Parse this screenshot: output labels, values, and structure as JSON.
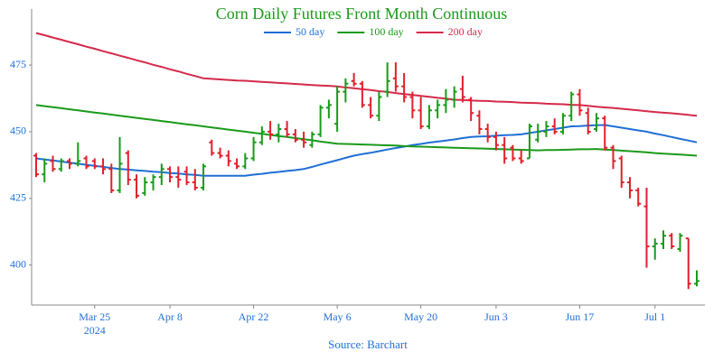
{
  "chart_data": {
    "type": "ohlc",
    "title": "Corn Daily Futures Front Month Continuous",
    "source": "Source: Barchart",
    "year_label": "2024",
    "categories": [
      "2024-03-14",
      "2024-03-15",
      "2024-03-18",
      "2024-03-19",
      "2024-03-20",
      "2024-03-21",
      "2024-03-22",
      "2024-03-25",
      "2024-03-26",
      "2024-03-27",
      "2024-03-28",
      "2024-04-01",
      "2024-04-02",
      "2024-04-03",
      "2024-04-04",
      "2024-04-05",
      "2024-04-08",
      "2024-04-09",
      "2024-04-10",
      "2024-04-11",
      "2024-04-12",
      "2024-04-15",
      "2024-04-16",
      "2024-04-17",
      "2024-04-18",
      "2024-04-19",
      "2024-04-22",
      "2024-04-23",
      "2024-04-24",
      "2024-04-25",
      "2024-04-26",
      "2024-04-29",
      "2024-04-30",
      "2024-05-01",
      "2024-05-02",
      "2024-05-03",
      "2024-05-06",
      "2024-05-07",
      "2024-05-08",
      "2024-05-09",
      "2024-05-10",
      "2024-05-13",
      "2024-05-14",
      "2024-05-15",
      "2024-05-16",
      "2024-05-17",
      "2024-05-20",
      "2024-05-21",
      "2024-05-22",
      "2024-05-23",
      "2024-05-24",
      "2024-05-28",
      "2024-05-29",
      "2024-05-30",
      "2024-05-31",
      "2024-06-03",
      "2024-06-04",
      "2024-06-05",
      "2024-06-06",
      "2024-06-07",
      "2024-06-10",
      "2024-06-11",
      "2024-06-12",
      "2024-06-13",
      "2024-06-14",
      "2024-06-17",
      "2024-06-18",
      "2024-06-20",
      "2024-06-21",
      "2024-06-24",
      "2024-06-25",
      "2024-06-26",
      "2024-06-27",
      "2024-06-28",
      "2024-07-01",
      "2024-07-02",
      "2024-07-03",
      "2024-07-05",
      "2024-07-08",
      "2024-07-09"
    ],
    "open": [
      441,
      434,
      439,
      436,
      439,
      438,
      440,
      439,
      437,
      436,
      428,
      442,
      432,
      427,
      431,
      433,
      436,
      433,
      435,
      431,
      429,
      446,
      442,
      441,
      438,
      437,
      440,
      446,
      450,
      449,
      451,
      449,
      447,
      445,
      449,
      459,
      453,
      465,
      469,
      468,
      460,
      456,
      465,
      470,
      467,
      463,
      458,
      452,
      458,
      460,
      462,
      466,
      462,
      456,
      451,
      448,
      445,
      444,
      440,
      440,
      447,
      450,
      452,
      450,
      456,
      464,
      457,
      451,
      455,
      444,
      440,
      431,
      428,
      422,
      407,
      408,
      411,
      406,
      410,
      393
    ],
    "high": [
      442,
      440,
      441,
      440,
      440,
      446,
      441,
      440,
      440,
      438,
      448,
      443,
      434,
      433,
      434,
      438,
      437,
      437,
      437,
      436,
      438,
      447,
      444,
      443,
      440,
      442,
      448,
      452,
      454,
      453,
      454,
      451,
      450,
      450,
      460,
      462,
      467,
      470,
      472,
      469,
      463,
      465,
      476,
      476,
      472,
      465,
      463,
      460,
      462,
      466,
      467,
      471,
      463,
      458,
      453,
      450,
      448,
      445,
      443,
      453,
      453,
      454,
      455,
      457,
      465,
      466,
      459,
      457,
      456,
      445,
      441,
      433,
      429,
      429,
      410,
      413,
      412,
      412,
      410,
      398
    ],
    "low": [
      433,
      431,
      435,
      435,
      436,
      437,
      436,
      436,
      434,
      427,
      427,
      430,
      425,
      426,
      428,
      430,
      431,
      429,
      430,
      428,
      428,
      441,
      440,
      437,
      436,
      436,
      439,
      445,
      447,
      446,
      448,
      446,
      444,
      444,
      448,
      455,
      450,
      461,
      467,
      459,
      455,
      454,
      463,
      465,
      461,
      455,
      451,
      451,
      455,
      457,
      459,
      461,
      454,
      449,
      446,
      443,
      438,
      439,
      438,
      440,
      446,
      448,
      449,
      449,
      454,
      456,
      449,
      450,
      443,
      436,
      429,
      425,
      422,
      399,
      402,
      406,
      406,
      405,
      391,
      392
    ],
    "close": [
      434,
      438,
      436,
      439,
      438,
      439,
      437,
      437,
      436,
      428,
      438,
      432,
      426,
      431,
      433,
      436,
      433,
      432,
      431,
      429,
      437,
      442,
      441,
      439,
      437,
      440,
      446,
      450,
      449,
      451,
      449,
      447,
      446,
      449,
      459,
      460,
      465,
      468,
      468,
      460,
      456,
      463,
      469,
      467,
      463,
      458,
      452,
      458,
      460,
      462,
      465,
      463,
      457,
      451,
      448,
      445,
      440,
      440,
      439,
      452,
      450,
      452,
      450,
      456,
      464,
      458,
      450,
      455,
      444,
      439,
      431,
      428,
      423,
      407,
      408,
      411,
      407,
      411,
      393,
      394
    ],
    "up_color": "#1a9a1a",
    "down_color": "#e0202a",
    "series": [
      {
        "name": "50 day",
        "color": "#1f6fd6",
        "values": [
          440,
          439.6,
          439.2,
          438.8,
          438.4,
          438,
          437.6,
          437.2,
          436.8,
          436.4,
          436,
          435.8,
          435.5,
          435.3,
          435,
          434.8,
          434.5,
          434.3,
          434,
          433.8,
          433.5,
          433.5,
          433.5,
          433.5,
          433.5,
          433.5,
          433.9,
          434.2,
          434.6,
          434.9,
          435.3,
          435.6,
          436,
          436.8,
          437.7,
          438.5,
          439.3,
          440.2,
          441,
          441.6,
          442.1,
          442.7,
          443.3,
          443.9,
          444.4,
          445,
          445.4,
          445.9,
          446.3,
          446.7,
          447.1,
          447.6,
          448,
          448.2,
          448.3,
          448.5,
          448.7,
          448.8,
          449,
          449.5,
          450,
          450.5,
          451,
          451.5,
          452,
          452.1,
          452.3,
          452.4,
          452.5,
          452,
          451.5,
          451,
          450.5,
          450,
          449.3,
          448.7,
          448,
          447.3,
          446.7,
          446
        ]
      },
      {
        "name": "100 day",
        "color": "#1a9a1a",
        "values": [
          460,
          459.6,
          459.2,
          458.8,
          458.4,
          458,
          457.6,
          457.2,
          456.8,
          456.4,
          456,
          455.6,
          455.2,
          454.8,
          454.4,
          454,
          453.6,
          453.2,
          452.8,
          452.4,
          452,
          451.6,
          451.2,
          450.8,
          450.4,
          450,
          449.6,
          449.2,
          448.8,
          448.4,
          448,
          447.6,
          447.2,
          446.8,
          446.3,
          445.9,
          445.5,
          445.4,
          445.3,
          445.2,
          445.1,
          445,
          444.9,
          444.8,
          444.6,
          444.5,
          444.4,
          444.3,
          444.2,
          444.1,
          444,
          443.9,
          443.8,
          443.7,
          443.6,
          443.5,
          443.4,
          443.3,
          443.2,
          443.1,
          443,
          443.1,
          443.1,
          443.2,
          443.3,
          443.4,
          443.4,
          443.5,
          443.3,
          443.1,
          442.9,
          442.7,
          442.5,
          442.3,
          442,
          441.8,
          441.6,
          441.4,
          441.2,
          441
        ]
      },
      {
        "name": "200 day",
        "color": "#d42a4a",
        "values": [
          487,
          486.2,
          485.3,
          484.5,
          483.6,
          482.8,
          481.9,
          481.1,
          480.2,
          479.4,
          478.5,
          477.7,
          476.8,
          476,
          475.1,
          474.3,
          473.4,
          472.6,
          471.7,
          470.9,
          470,
          469.8,
          469.6,
          469.4,
          469.2,
          469.1,
          468.9,
          468.7,
          468.5,
          468.3,
          468.1,
          467.9,
          467.7,
          467.5,
          467.3,
          467.2,
          467,
          466.6,
          466.3,
          465.9,
          465.6,
          465.2,
          464.9,
          464.5,
          464.1,
          463.8,
          463.4,
          463.1,
          462.7,
          462.4,
          462,
          461.9,
          461.7,
          461.6,
          461.5,
          461.3,
          461.2,
          461.1,
          460.9,
          460.8,
          460.7,
          460.5,
          460.4,
          460.3,
          460.1,
          460,
          459.7,
          459.4,
          459.1,
          458.9,
          458.6,
          458.3,
          458,
          457.7,
          457.4,
          457.1,
          456.9,
          456.6,
          456.3,
          456
        ]
      }
    ],
    "ylim": [
      385,
      496
    ],
    "yticks": [
      400,
      425,
      450,
      475
    ],
    "xticks": [
      {
        "value": "2024-03-25",
        "label": "Mar 25"
      },
      {
        "value": "2024-04-08",
        "label": "Apr 8"
      },
      {
        "value": "2024-04-22",
        "label": "Apr 22"
      },
      {
        "value": "2024-05-06",
        "label": "May 6"
      },
      {
        "value": "2024-05-20",
        "label": "May 20"
      },
      {
        "value": "2024-06-03",
        "label": "Jun 3"
      },
      {
        "value": "2024-06-17",
        "label": "Jun 17"
      },
      {
        "value": "2024-07-01",
        "label": "Jul 1"
      }
    ],
    "grid": false,
    "legend": "top"
  }
}
